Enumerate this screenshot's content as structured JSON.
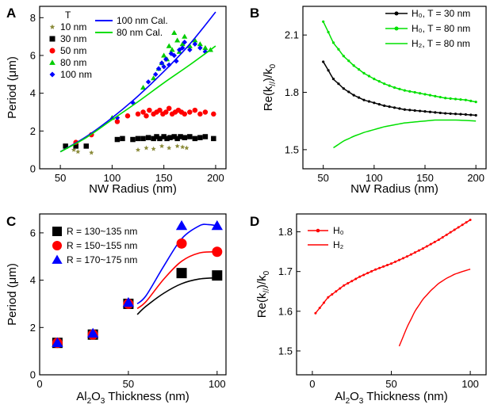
{
  "chart_data": [
    {
      "panel": "A",
      "type": "scatter",
      "xlabel": "NW Radius (nm)",
      "ylabel": "Period (μm)",
      "xlim": [
        30,
        210
      ],
      "ylim": [
        0,
        8.6
      ],
      "xticks": [
        50,
        100,
        150,
        200
      ],
      "yticks": [
        0,
        2,
        4,
        6,
        8
      ],
      "legend_title": "T",
      "series": [
        {
          "name": "10 nm",
          "marker": "star",
          "color": "#8b8b3a",
          "x": [
            63,
            67,
            80,
            125,
            133,
            140,
            148,
            155,
            163,
            168,
            172
          ],
          "y": [
            1.0,
            0.9,
            0.85,
            1.0,
            1.1,
            1.05,
            1.2,
            1.1,
            1.2,
            1.15,
            1.1
          ]
        },
        {
          "name": "30 nm",
          "marker": "square",
          "color": "#000000",
          "x": [
            55,
            65,
            75,
            105,
            110,
            120,
            125,
            130,
            135,
            140,
            143,
            146,
            150,
            153,
            156,
            160,
            163,
            166,
            170,
            175,
            180,
            185,
            190,
            198
          ],
          "y": [
            1.2,
            1.2,
            1.2,
            1.55,
            1.6,
            1.55,
            1.6,
            1.6,
            1.65,
            1.6,
            1.7,
            1.6,
            1.7,
            1.6,
            1.65,
            1.7,
            1.6,
            1.7,
            1.65,
            1.7,
            1.6,
            1.65,
            1.7,
            1.6
          ]
        },
        {
          "name": "50 nm",
          "marker": "circle",
          "color": "#ff0000",
          "x": [
            65,
            80,
            105,
            115,
            125,
            130,
            133,
            136,
            140,
            143,
            146,
            149,
            152,
            155,
            158,
            161,
            164,
            167,
            170,
            175,
            180,
            185,
            190,
            198
          ],
          "y": [
            1.4,
            1.8,
            2.5,
            2.8,
            2.9,
            3.0,
            2.8,
            3.1,
            2.9,
            3.0,
            3.1,
            2.9,
            3.0,
            3.2,
            2.9,
            3.0,
            3.1,
            3.0,
            2.9,
            3.0,
            3.1,
            2.9,
            3.0,
            2.9
          ]
        },
        {
          "name": "80 nm",
          "marker": "triangle",
          "color": "#00cc00",
          "x": [
            100,
            130,
            140,
            145,
            148,
            150,
            153,
            155,
            158,
            160,
            163,
            165,
            168,
            170,
            175,
            180,
            185,
            190,
            195
          ],
          "y": [
            2.7,
            4.3,
            4.8,
            5.3,
            5.6,
            6.0,
            5.8,
            6.5,
            6.3,
            7.2,
            6.8,
            6.2,
            6.6,
            7.0,
            6.5,
            6.8,
            6.6,
            6.4,
            6.3
          ]
        },
        {
          "name": "100 nm",
          "marker": "diamond",
          "color": "#0000ff",
          "x": [
            105,
            120,
            135,
            142,
            145,
            148,
            150,
            152,
            155,
            157,
            160,
            162,
            165,
            168,
            170,
            175,
            180,
            185,
            190
          ],
          "y": [
            2.7,
            3.5,
            4.6,
            5.0,
            5.3,
            5.6,
            5.4,
            5.8,
            5.5,
            6.1,
            6.0,
            5.7,
            6.3,
            6.4,
            6.7,
            6.3,
            6.6,
            6.4,
            6.2
          ]
        },
        {
          "name": "100 nm Cal.",
          "type": "line",
          "color": "#0000ff",
          "x": [
            50,
            75,
            100,
            125,
            150,
            175,
            200
          ],
          "y": [
            0.9,
            1.7,
            2.7,
            3.85,
            5.15,
            6.6,
            8.3
          ]
        },
        {
          "name": "80 nm Cal.",
          "type": "line",
          "color": "#00dd00",
          "x": [
            50,
            75,
            100,
            125,
            150,
            175,
            200
          ],
          "y": [
            0.9,
            1.65,
            2.6,
            3.55,
            4.55,
            5.5,
            6.5
          ]
        }
      ]
    },
    {
      "panel": "B",
      "type": "line",
      "xlabel": "NW Radius (nm)",
      "ylabel": "Re(k//)/k0",
      "xlim": [
        30,
        210
      ],
      "ylim": [
        1.4,
        2.25
      ],
      "xticks": [
        50,
        100,
        150,
        200
      ],
      "yticks": [
        1.5,
        1.8,
        2.1
      ],
      "series": [
        {
          "name": "H0, T = 30 nm",
          "color": "#000000",
          "markers": true,
          "x": [
            50,
            60,
            70,
            80,
            90,
            100,
            110,
            120,
            130,
            140,
            150,
            160,
            170,
            180,
            190,
            200
          ],
          "y": [
            1.96,
            1.87,
            1.82,
            1.785,
            1.76,
            1.745,
            1.73,
            1.72,
            1.71,
            1.705,
            1.7,
            1.695,
            1.69,
            1.687,
            1.684,
            1.68
          ]
        },
        {
          "name": "H0, T = 80 nm",
          "color": "#00e000",
          "markers": true,
          "x": [
            50,
            60,
            70,
            80,
            90,
            100,
            110,
            120,
            130,
            140,
            150,
            160,
            170,
            180,
            190,
            200
          ],
          "y": [
            2.17,
            2.06,
            1.99,
            1.94,
            1.9,
            1.87,
            1.845,
            1.825,
            1.81,
            1.8,
            1.79,
            1.78,
            1.77,
            1.765,
            1.76,
            1.75
          ]
        },
        {
          "name": "H2, T = 80 nm",
          "color": "#00e000",
          "markers": false,
          "x": [
            60,
            70,
            80,
            90,
            100,
            110,
            120,
            130,
            140,
            150,
            160,
            170,
            180,
            190,
            200
          ],
          "y": [
            1.51,
            1.545,
            1.57,
            1.59,
            1.605,
            1.62,
            1.63,
            1.64,
            1.645,
            1.65,
            1.655,
            1.655,
            1.655,
            1.653,
            1.65
          ]
        }
      ]
    },
    {
      "panel": "C",
      "type": "scatter",
      "xlabel": "Al2O3 Thickness (nm)",
      "ylabel": "Period (μm)",
      "xlim": [
        0,
        105
      ],
      "ylim": [
        0,
        6.8
      ],
      "xticks": [
        0,
        50,
        100
      ],
      "yticks": [
        0,
        2,
        4,
        6
      ],
      "series": [
        {
          "name": "R = 130~135 nm",
          "marker": "square",
          "color": "#000000",
          "x": [
            10,
            30,
            50,
            80,
            100
          ],
          "y": [
            1.35,
            1.7,
            3.0,
            4.3,
            4.2
          ]
        },
        {
          "name": "R = 150~155 nm",
          "marker": "circle",
          "color": "#ff0000",
          "x": [
            10,
            30,
            50,
            80,
            100
          ],
          "y": [
            1.35,
            1.7,
            3.0,
            5.55,
            5.2
          ]
        },
        {
          "name": "R = 170~175 nm",
          "marker": "triangle",
          "color": "#0000ff",
          "x": [
            10,
            30,
            50,
            80,
            100
          ],
          "y": [
            1.35,
            1.75,
            3.05,
            6.3,
            6.3
          ]
        }
      ],
      "curves": [
        {
          "color": "#000000",
          "x": [
            55,
            60,
            70,
            80,
            90,
            100
          ],
          "y": [
            2.55,
            2.9,
            3.45,
            3.85,
            4.05,
            4.1
          ]
        },
        {
          "color": "#ff0000",
          "x": [
            55,
            60,
            70,
            80,
            90,
            100
          ],
          "y": [
            2.8,
            3.1,
            4.05,
            4.8,
            5.15,
            5.2
          ]
        },
        {
          "color": "#0000ff",
          "x": [
            55,
            60,
            70,
            80,
            90,
            95,
            100
          ],
          "y": [
            3.0,
            3.35,
            4.6,
            5.75,
            6.3,
            6.35,
            6.3
          ]
        }
      ]
    },
    {
      "panel": "D",
      "type": "line",
      "xlabel": "Al2O3 Thickness (nm)",
      "ylabel": "Re(k//)/k0",
      "xlim": [
        -10,
        110
      ],
      "ylim": [
        1.44,
        1.845
      ],
      "xticks": [
        0,
        50,
        100
      ],
      "yticks": [
        1.5,
        1.6,
        1.7,
        1.8
      ],
      "series": [
        {
          "name": "H0",
          "color": "#ff0000",
          "markers": true,
          "x": [
            2,
            10,
            20,
            30,
            40,
            50,
            60,
            70,
            80,
            90,
            100
          ],
          "y": [
            1.595,
            1.635,
            1.665,
            1.687,
            1.705,
            1.72,
            1.738,
            1.758,
            1.78,
            1.805,
            1.83
          ]
        },
        {
          "name": "H2",
          "color": "#ff0000",
          "markers": false,
          "x": [
            55,
            60,
            65,
            70,
            75,
            80,
            85,
            90,
            95,
            100
          ],
          "y": [
            1.512,
            1.56,
            1.6,
            1.63,
            1.652,
            1.67,
            1.683,
            1.693,
            1.7,
            1.706
          ]
        }
      ]
    }
  ],
  "panel_labels": {
    "a": "A",
    "b": "B",
    "c": "C",
    "d": "D"
  },
  "legend_title": "T",
  "axis_text": {
    "radius_label": "NW Radius (nm)",
    "period_label_prefix": "Period (",
    "period_label_unit": "μm",
    "period_label_suffix": ")",
    "re_prefix": "Re(k",
    "re_sub": "//",
    "re_mid": ")/k",
    "re_sub0": "0",
    "thick_prefix": "Al",
    "thick_sub2": "2",
    "thick_mid": "O",
    "thick_sub3": "3",
    "thick_suffix": " Thickness (nm)"
  },
  "legends": {
    "a_left": [
      "10 nm",
      "30 nm",
      "50 nm",
      "80 nm",
      "100 nm"
    ],
    "a_right": [
      "100 nm Cal.",
      "80 nm Cal."
    ],
    "b": [
      "H₀, T = 30 nm",
      "H₀, T = 80 nm",
      "H₂, T = 80 nm"
    ],
    "c": [
      "R = 130~135 nm",
      "R = 150~155 nm",
      "R = 170~175 nm"
    ],
    "d": [
      "H₀",
      "H₂"
    ]
  },
  "tick_text": {
    "a_x": [
      "50",
      "100",
      "150",
      "200"
    ],
    "a_y": [
      "0",
      "2",
      "4",
      "6",
      "8"
    ],
    "b_x": [
      "50",
      "100",
      "150",
      "200"
    ],
    "b_y": [
      "1.5",
      "1.8",
      "2.1"
    ],
    "c_x": [
      "0",
      "50",
      "100"
    ],
    "c_y": [
      "0",
      "2",
      "4",
      "6"
    ],
    "d_x": [
      "0",
      "50",
      "100"
    ],
    "d_y": [
      "1.5",
      "1.6",
      "1.7",
      "1.8"
    ]
  }
}
